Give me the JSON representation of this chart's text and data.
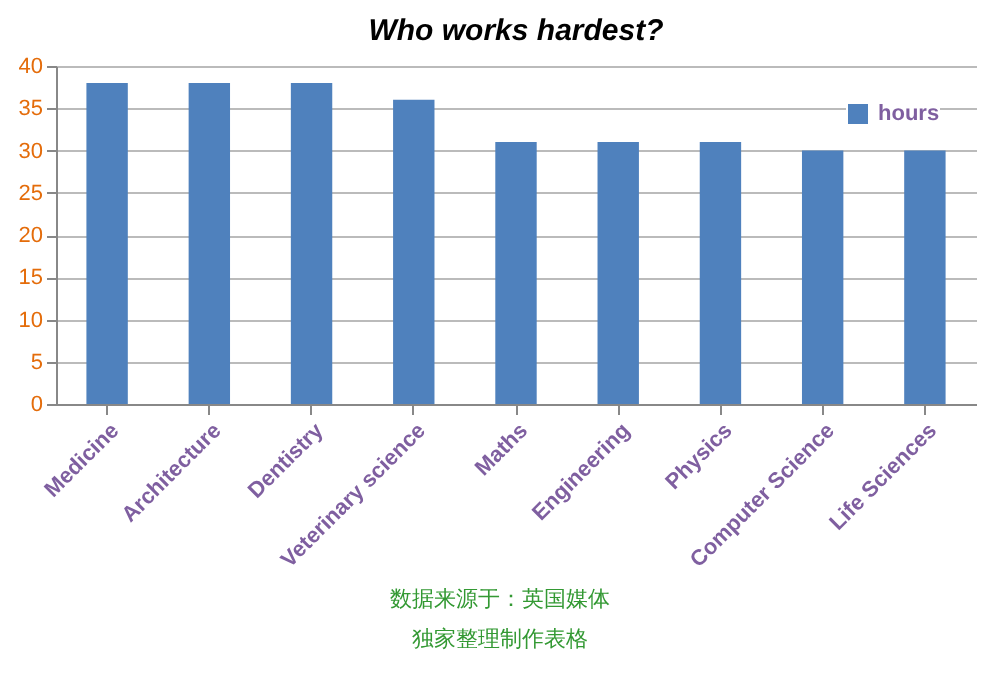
{
  "chart_data": {
    "type": "bar",
    "title": "Who works hardest?",
    "categories": [
      "Medicine",
      "Architecture",
      "Dentistry",
      "Veterinary science",
      "Maths",
      "Engineering",
      "Physics",
      "Computer Science",
      "Life Sciences"
    ],
    "series": [
      {
        "name": "hours",
        "color": "#4f81bd",
        "values": [
          38,
          38,
          38,
          36,
          31,
          31,
          31,
          30,
          30
        ]
      }
    ],
    "ylim": [
      0,
      40
    ],
    "yticks": [
      0,
      5,
      10,
      15,
      20,
      25,
      30,
      35,
      40
    ],
    "grid": "y",
    "legend": "top right",
    "annotations": [
      "数据来源于：英国媒体",
      "独家整理制作表格"
    ]
  }
}
